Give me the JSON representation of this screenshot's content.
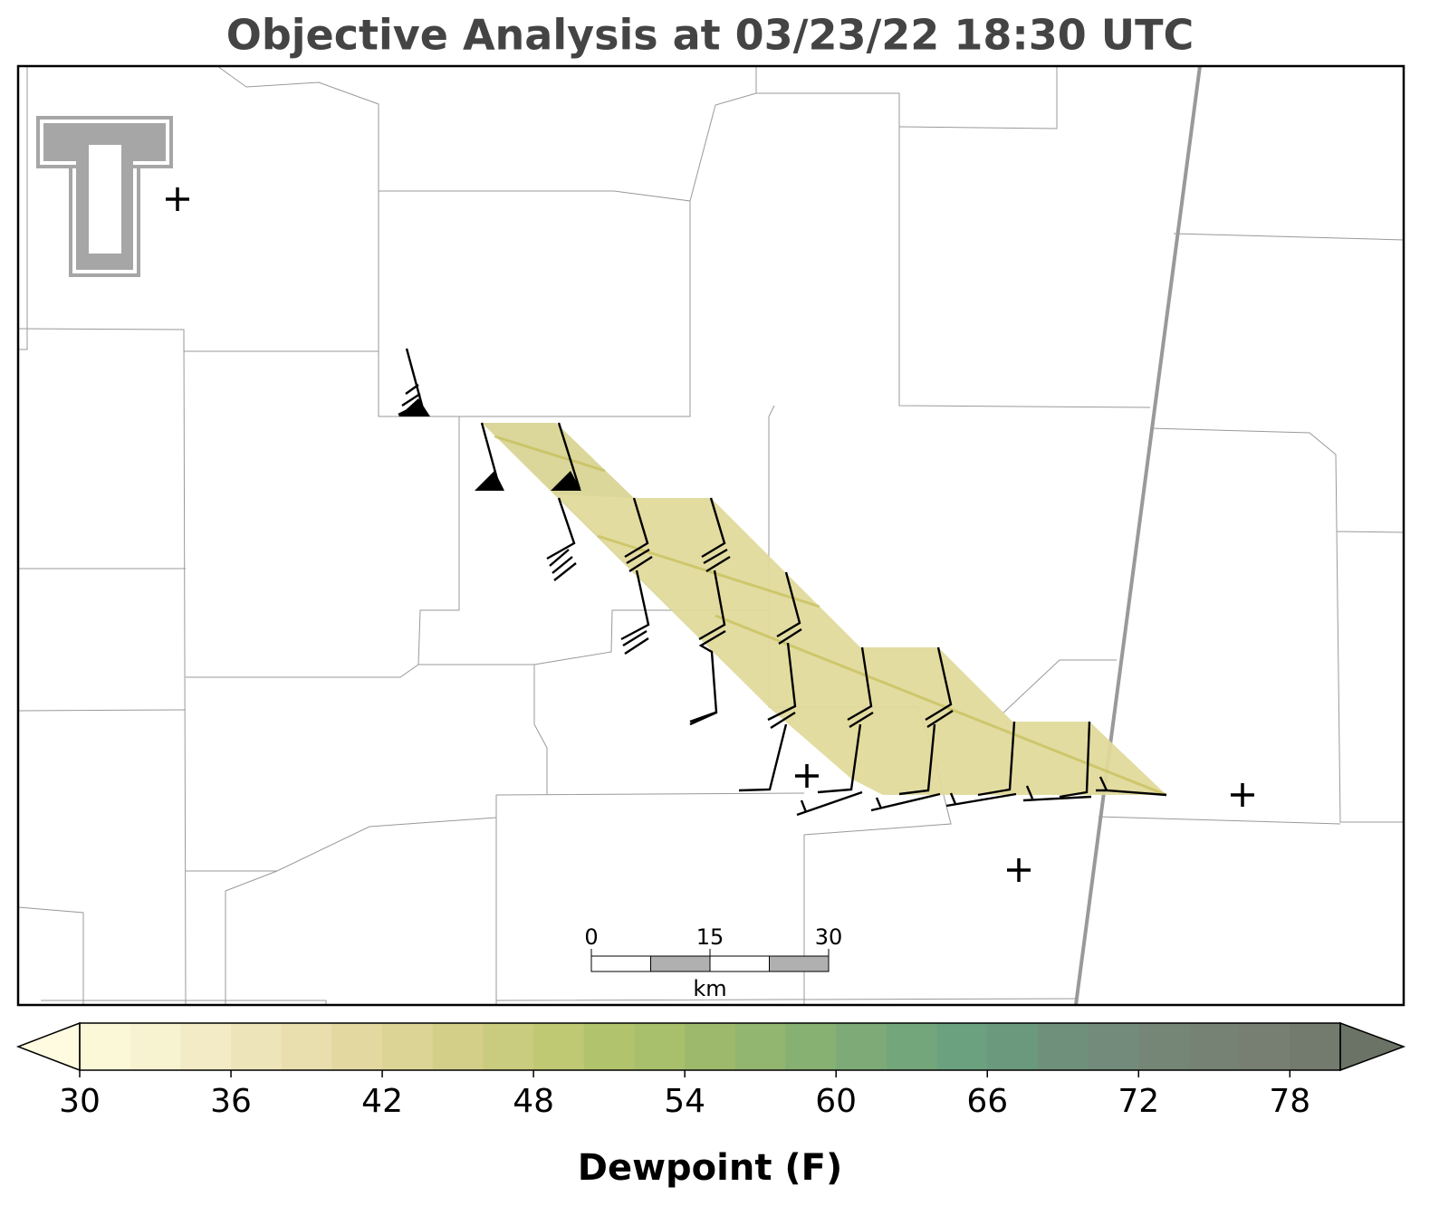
{
  "title": "Objective Analysis at 03/23/22 18:30 UTC",
  "colorbar": {
    "label": "Dewpoint (F)",
    "range": [
      30,
      80
    ],
    "ticks": [
      30,
      36,
      42,
      48,
      54,
      60,
      66,
      72,
      78
    ],
    "colors": [
      "#fbf8d8",
      "#f7f2d0",
      "#f3ebc5",
      "#eee4b9",
      "#e9dead",
      "#e3d8a0",
      "#dcd494",
      "#d3cf89",
      "#c9cb7e",
      "#bfc873",
      "#b2c36d",
      "#a8bf6b",
      "#9dba6c",
      "#92b56f",
      "#87b073",
      "#7daa77",
      "#74a67b",
      "#6ba17e",
      "#6b997e",
      "#6f917c",
      "#738b7a",
      "#758677",
      "#768274",
      "#767f71",
      "#737a6e"
    ],
    "under_color": "#fefbe0",
    "over_color": "#6b7366"
  },
  "scale_bar": {
    "ticks": [
      0,
      15,
      30
    ],
    "unit": "km"
  }
}
